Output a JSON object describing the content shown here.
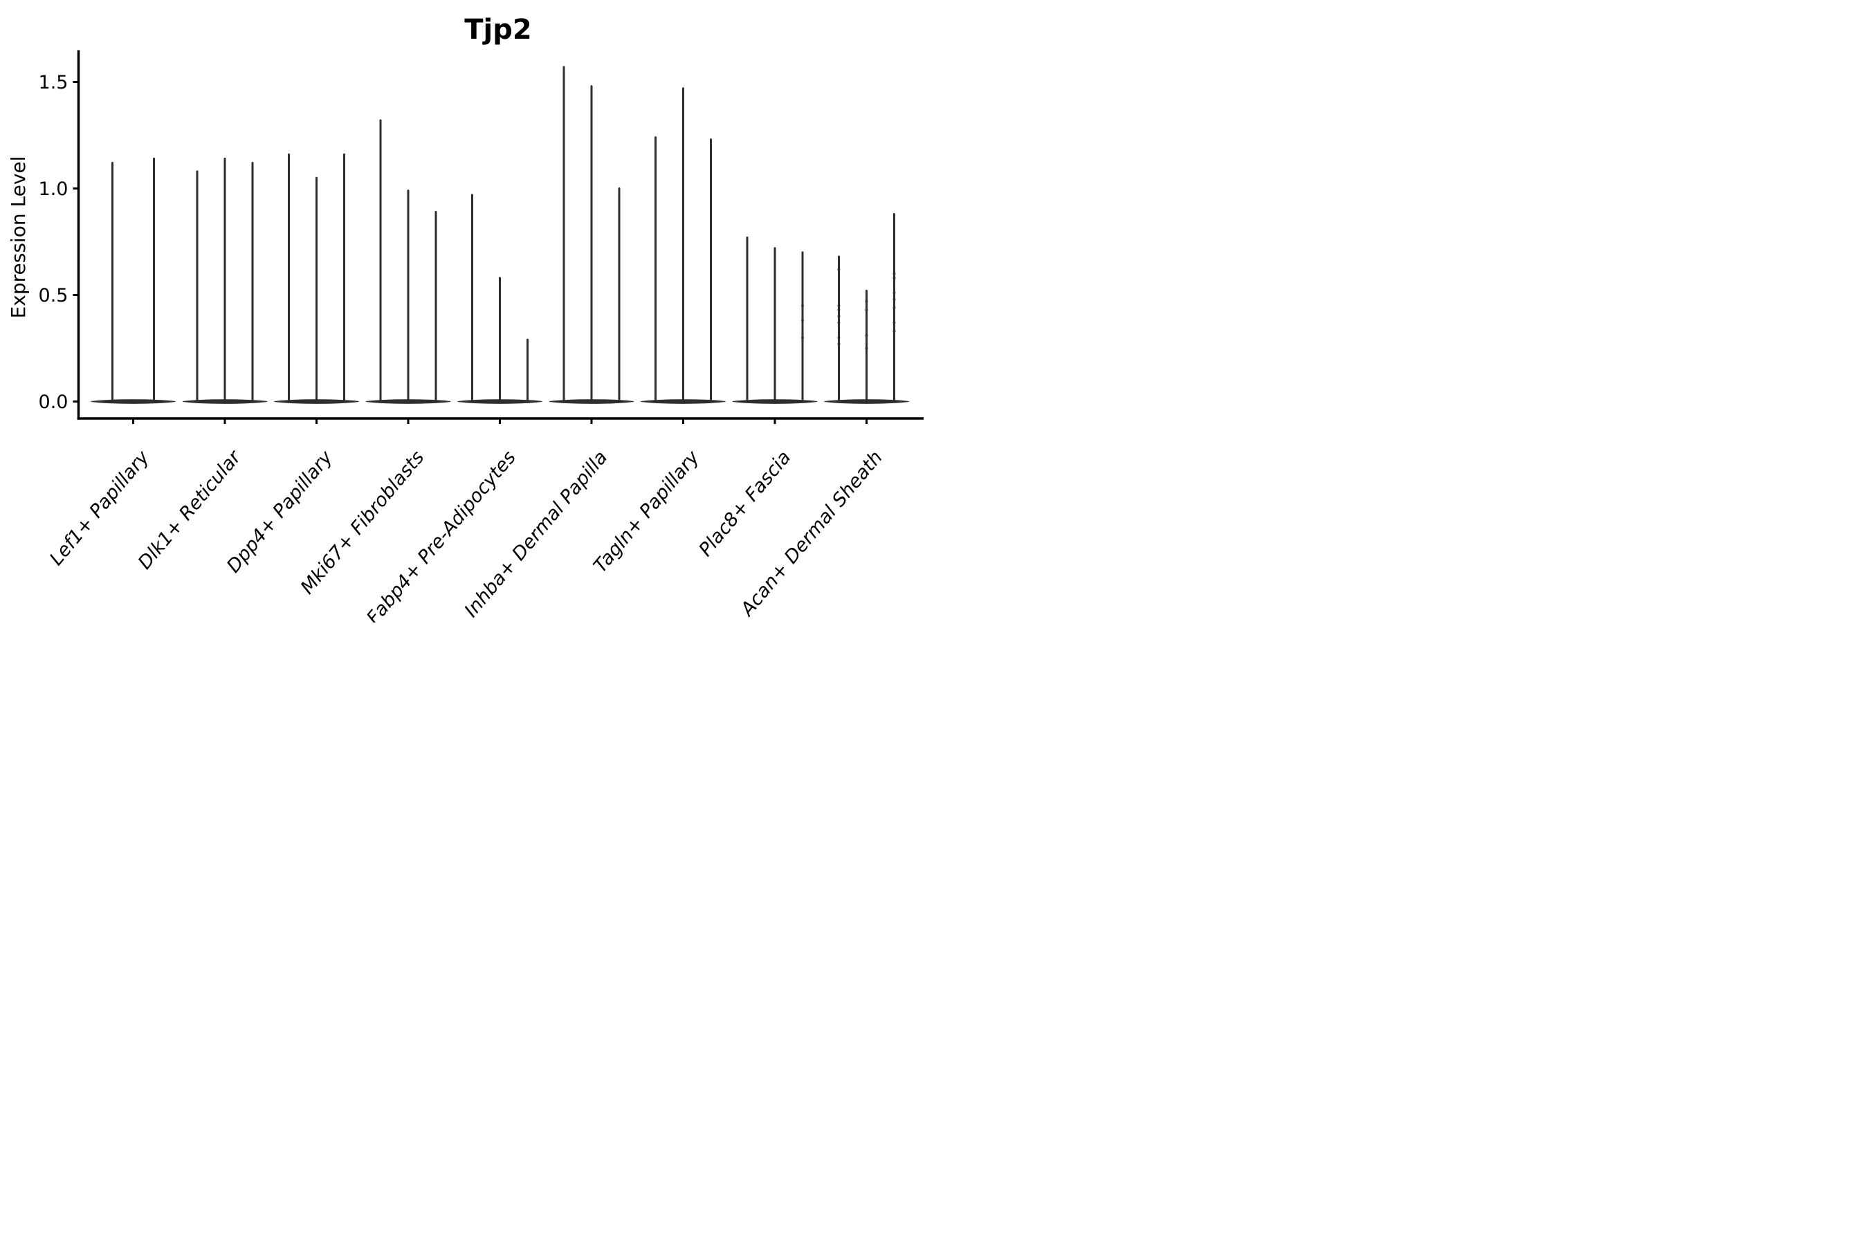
{
  "figure": {
    "title": "Tjp2",
    "background": "#ffffff"
  },
  "chart_data": {
    "type": "violin",
    "title": "Tjp2",
    "xlabel": "",
    "ylabel": "Expression Level",
    "ylim": [
      -0.08,
      1.66
    ],
    "yticks": [
      0.0,
      0.5,
      1.0,
      1.5
    ],
    "ytick_labels": [
      "0.0",
      "0.5",
      "1.0",
      "1.5"
    ],
    "grid": false,
    "legend": "none",
    "violin_color": "#2e2e2e",
    "axis_color": "#000000",
    "shape": "flat-base-blob-with-thin-spike-to-max",
    "categories": [
      "Lef1+ Papillary",
      "Dlk1+ Reticular",
      "Dpp4+ Papillary",
      "Mki67+ Fibroblasts",
      "Fabp4+ Pre-Adipocytes",
      "Inhba+ Dermal Papilla",
      "Tagln+ Papillary",
      "Plac8+ Fascia",
      "Acan+ Dermal Sheath"
    ],
    "groups": [
      {
        "category": "Lef1+ Papillary",
        "violin_maxima": [
          1.12,
          1.14
        ],
        "jitter_dots": [
          [],
          []
        ]
      },
      {
        "category": "Dlk1+ Reticular",
        "violin_maxima": [
          1.08,
          1.14,
          1.12
        ],
        "jitter_dots": [
          [],
          [],
          []
        ]
      },
      {
        "category": "Dpp4+ Papillary",
        "violin_maxima": [
          1.16,
          1.05,
          1.16
        ],
        "jitter_dots": [
          [],
          [],
          []
        ]
      },
      {
        "category": "Mki67+ Fibroblasts",
        "violin_maxima": [
          1.32,
          0.99,
          0.89
        ],
        "jitter_dots": [
          [],
          [],
          []
        ]
      },
      {
        "category": "Fabp4+ Pre-Adipocytes",
        "violin_maxima": [
          0.97,
          0.58,
          0.29
        ],
        "jitter_dots": [
          [],
          [],
          []
        ]
      },
      {
        "category": "Inhba+ Dermal Papilla",
        "violin_maxima": [
          1.57,
          1.48,
          1.0
        ],
        "jitter_dots": [
          [],
          [],
          []
        ]
      },
      {
        "category": "Tagln+ Papillary",
        "violin_maxima": [
          1.24,
          1.47,
          1.23
        ],
        "jitter_dots": [
          [],
          [],
          []
        ]
      },
      {
        "category": "Plac8+ Fascia",
        "violin_maxima": [
          0.77,
          0.72,
          0.7
        ],
        "jitter_dots": [
          [],
          [],
          [
            0.45,
            0.38,
            0.3
          ]
        ]
      },
      {
        "category": "Acan+ Dermal Sheath",
        "violin_maxima": [
          0.68,
          0.52,
          0.88
        ],
        "jitter_dots": [
          [
            0.62,
            0.45,
            0.43,
            0.4,
            0.37,
            0.3,
            0.27
          ],
          [
            0.47,
            0.43,
            0.31,
            0.25
          ],
          [
            0.6,
            0.58,
            0.51,
            0.48,
            0.44,
            0.37,
            0.33
          ]
        ]
      }
    ]
  }
}
